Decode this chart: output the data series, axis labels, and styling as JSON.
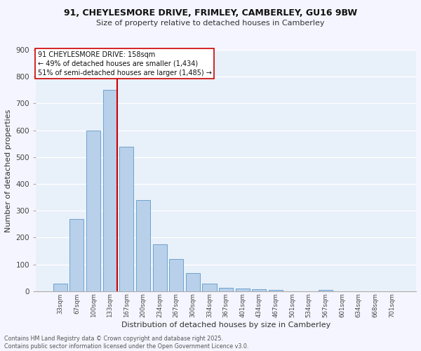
{
  "title_line1": "91, CHEYLESMORE DRIVE, FRIMLEY, CAMBERLEY, GU16 9BW",
  "title_line2": "Size of property relative to detached houses in Camberley",
  "xlabel": "Distribution of detached houses by size in Camberley",
  "ylabel": "Number of detached properties",
  "bar_values": [
    28,
    270,
    600,
    750,
    540,
    340,
    175,
    120,
    68,
    28,
    12,
    10,
    8,
    5,
    0,
    0,
    5,
    0,
    0,
    0,
    0
  ],
  "x_labels": [
    "33sqm",
    "67sqm",
    "100sqm",
    "133sqm",
    "167sqm",
    "200sqm",
    "234sqm",
    "267sqm",
    "300sqm",
    "334sqm",
    "367sqm",
    "401sqm",
    "434sqm",
    "467sqm",
    "501sqm",
    "534sqm",
    "567sqm",
    "601sqm",
    "634sqm",
    "668sqm",
    "701sqm"
  ],
  "bar_color": "#b8d0ea",
  "bar_edge_color": "#6fa3cc",
  "bg_color": "#e8f0fa",
  "fig_color": "#f5f5ff",
  "grid_color": "#ffffff",
  "vline_color": "#cc0000",
  "vline_xindex": 3.42,
  "annotation_text": "91 CHEYLESMORE DRIVE: 158sqm\n← 49% of detached houses are smaller (1,434)\n51% of semi-detached houses are larger (1,485) →",
  "annotation_box_color": "#ffffff",
  "annotation_box_edge": "#cc0000",
  "footer_line1": "Contains HM Land Registry data © Crown copyright and database right 2025.",
  "footer_line2": "Contains public sector information licensed under the Open Government Licence v3.0.",
  "ylim": [
    0,
    900
  ],
  "yticks": [
    0,
    100,
    200,
    300,
    400,
    500,
    600,
    700,
    800,
    900
  ],
  "title1_fontsize": 9.0,
  "title2_fontsize": 8.0,
  "xlabel_fontsize": 8.0,
  "ylabel_fontsize": 8.0,
  "xtick_fontsize": 6.2,
  "ytick_fontsize": 7.5,
  "annot_fontsize": 7.0,
  "footer_fontsize": 5.8
}
